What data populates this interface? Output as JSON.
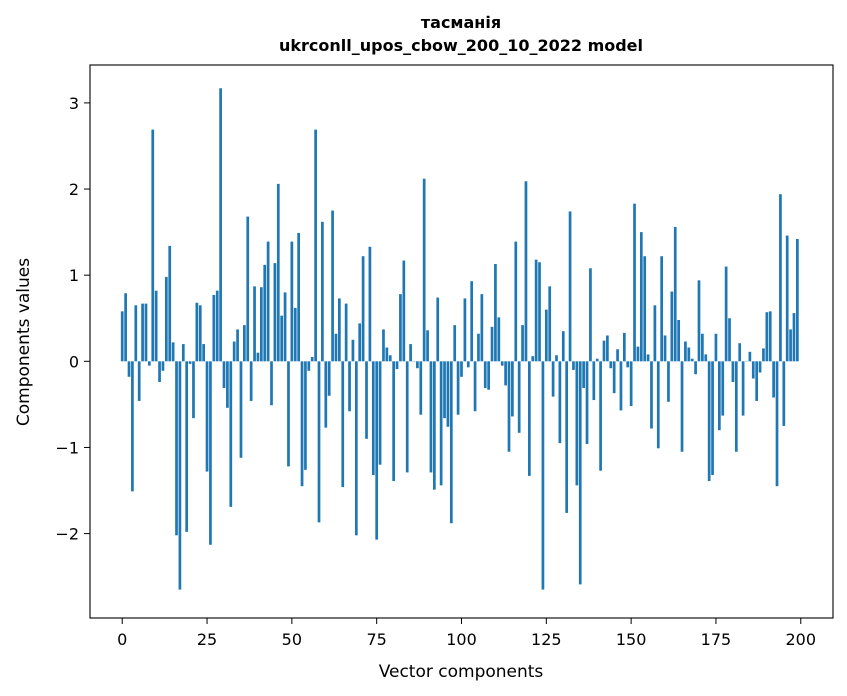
{
  "chart_data": {
    "type": "bar",
    "title": "тасманія",
    "subtitle": "ukrconll_upos_cbow_200_10_2022 model",
    "xlabel": "Vector components",
    "ylabel": "Components values",
    "xlim": [
      -9.5,
      209.5
    ],
    "ylim": [
      -2.98,
      3.44
    ],
    "xticks": [
      0,
      25,
      50,
      75,
      100,
      125,
      150,
      175,
      200
    ],
    "yticks": [
      -2,
      -1,
      0,
      1,
      2,
      3
    ],
    "ytick_labels": [
      "−2",
      "−1",
      "0",
      "1",
      "2",
      "3"
    ],
    "grid": false,
    "bar_color": "#1f77b4",
    "x": [
      0,
      1,
      2,
      3,
      4,
      5,
      6,
      7,
      8,
      9,
      10,
      11,
      12,
      13,
      14,
      15,
      16,
      17,
      18,
      19,
      20,
      21,
      22,
      23,
      24,
      25,
      26,
      27,
      28,
      29,
      30,
      31,
      32,
      33,
      34,
      35,
      36,
      37,
      38,
      39,
      40,
      41,
      42,
      43,
      44,
      45,
      46,
      47,
      48,
      49,
      50,
      51,
      52,
      53,
      54,
      55,
      56,
      57,
      58,
      59,
      60,
      61,
      62,
      63,
      64,
      65,
      66,
      67,
      68,
      69,
      70,
      71,
      72,
      73,
      74,
      75,
      76,
      77,
      78,
      79,
      80,
      81,
      82,
      83,
      84,
      85,
      86,
      87,
      88,
      89,
      90,
      91,
      92,
      93,
      94,
      95,
      96,
      97,
      98,
      99,
      100,
      101,
      102,
      103,
      104,
      105,
      106,
      107,
      108,
      109,
      110,
      111,
      112,
      113,
      114,
      115,
      116,
      117,
      118,
      119,
      120,
      121,
      122,
      123,
      124,
      125,
      126,
      127,
      128,
      129,
      130,
      131,
      132,
      133,
      134,
      135,
      136,
      137,
      138,
      139,
      140,
      141,
      142,
      143,
      144,
      145,
      146,
      147,
      148,
      149,
      150,
      151,
      152,
      153,
      154,
      155,
      156,
      157,
      158,
      159,
      160,
      161,
      162,
      163,
      164,
      165,
      166,
      167,
      168,
      169,
      170,
      171,
      172,
      173,
      174,
      175,
      176,
      177,
      178,
      179,
      180,
      181,
      182,
      183,
      184,
      185,
      186,
      187,
      188,
      189,
      190,
      191,
      192,
      193,
      194,
      195,
      196,
      197,
      198,
      199
    ],
    "values": [
      0.58,
      0.79,
      -0.18,
      -1.51,
      0.65,
      -0.46,
      0.67,
      0.67,
      -0.05,
      2.69,
      0.82,
      -0.24,
      -0.11,
      0.98,
      1.34,
      0.22,
      -2.02,
      -2.65,
      0.2,
      -1.98,
      -0.03,
      -0.66,
      0.68,
      0.65,
      0.2,
      -1.28,
      -2.13,
      0.77,
      0.82,
      3.17,
      -0.31,
      -0.54,
      -1.69,
      0.23,
      0.37,
      -1.12,
      0.42,
      1.68,
      -0.46,
      0.87,
      0.1,
      0.86,
      1.12,
      1.39,
      -0.51,
      1.14,
      2.06,
      0.53,
      0.8,
      -1.22,
      1.39,
      0.62,
      1.49,
      -1.45,
      -1.26,
      -0.11,
      0.05,
      2.69,
      -1.87,
      1.62,
      -0.77,
      -0.4,
      1.75,
      0.32,
      0.73,
      -1.46,
      0.67,
      -0.58,
      0.25,
      -2.02,
      0.44,
      1.22,
      -0.9,
      1.33,
      -1.32,
      -2.07,
      -1.2,
      0.37,
      0.16,
      0.07,
      -1.39,
      -0.09,
      0.78,
      1.17,
      -1.29,
      0.2,
      0.0,
      -0.08,
      -0.62,
      2.12,
      0.36,
      -1.29,
      -1.49,
      0.74,
      -1.44,
      -0.66,
      -0.76,
      -1.88,
      0.42,
      -0.62,
      -0.18,
      0.73,
      -0.07,
      0.93,
      -0.58,
      0.32,
      0.78,
      -0.31,
      -0.33,
      0.4,
      1.13,
      0.51,
      -0.05,
      -0.28,
      -1.05,
      -0.64,
      1.39,
      -0.83,
      0.42,
      2.09,
      -1.33,
      0.06,
      1.18,
      1.15,
      -2.65,
      0.6,
      0.87,
      -0.41,
      0.07,
      -0.95,
      0.35,
      -1.76,
      1.74,
      -0.1,
      -1.44,
      -2.59,
      -0.31,
      -0.96,
      1.08,
      -0.45,
      0.03,
      -1.27,
      0.24,
      0.3,
      -0.08,
      -0.37,
      0.14,
      -0.57,
      0.33,
      -0.07,
      -0.52,
      1.83,
      0.17,
      1.5,
      1.22,
      0.08,
      -0.78,
      0.65,
      -1.01,
      1.22,
      0.3,
      -0.47,
      0.81,
      1.56,
      0.48,
      -1.05,
      0.23,
      0.16,
      0.03,
      -0.15,
      0.94,
      0.32,
      0.08,
      -1.39,
      -1.32,
      0.32,
      -0.8,
      -0.63,
      1.1,
      0.5,
      -0.24,
      -1.05,
      0.21,
      -0.63,
      0.0,
      0.11,
      -0.2,
      -0.46,
      -0.13,
      0.15,
      0.57,
      0.58,
      -0.42,
      -1.45,
      1.94,
      -0.75,
      1.46,
      0.37,
      0.56,
      1.42
    ]
  }
}
